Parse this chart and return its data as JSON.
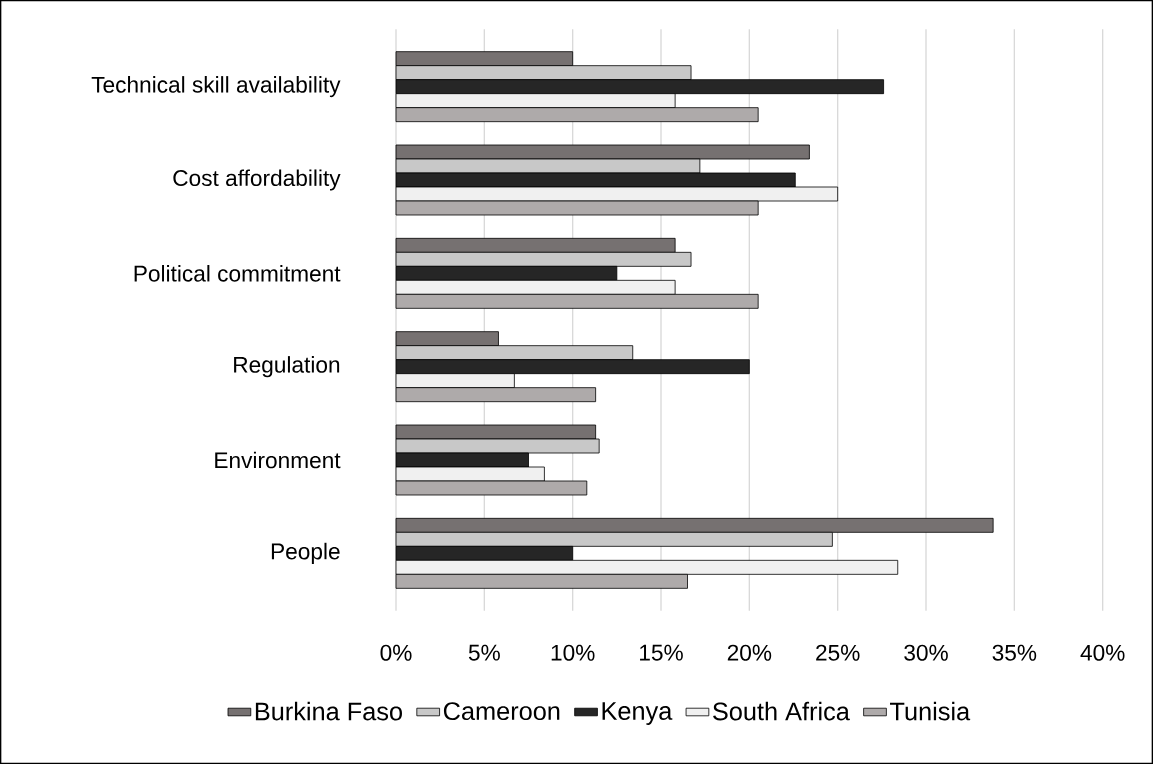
{
  "chart_data": {
    "type": "bar",
    "orientation": "horizontal",
    "categories": [
      "Technical skill availability",
      "Cost affordability",
      "Political commitment",
      "Regulation",
      "Environment",
      "People"
    ],
    "series": [
      {
        "name": "Burkina Faso",
        "color": "#767171",
        "values": [
          10.0,
          23.4,
          15.8,
          5.8,
          11.3,
          33.8
        ]
      },
      {
        "name": "Cameroon",
        "color": "#c8c8c8",
        "values": [
          16.7,
          17.2,
          16.7,
          13.4,
          11.5,
          24.7
        ]
      },
      {
        "name": "Kenya",
        "color": "#262626",
        "values": [
          27.6,
          22.6,
          12.5,
          20.0,
          7.5,
          10.0
        ]
      },
      {
        "name": "South Africa",
        "color": "#f0f0f0",
        "values": [
          15.8,
          25.0,
          15.8,
          6.7,
          8.4,
          28.4
        ]
      },
      {
        "name": "Tunisia",
        "color": "#aeaaaa",
        "values": [
          20.5,
          20.5,
          20.5,
          11.3,
          10.8,
          16.5
        ]
      }
    ],
    "xlim": [
      0,
      40
    ],
    "xticks": [
      {
        "value": 0,
        "label": "0%"
      },
      {
        "value": 5,
        "label": "5%"
      },
      {
        "value": 10,
        "label": "10%"
      },
      {
        "value": 15,
        "label": "15%"
      },
      {
        "value": 20,
        "label": "20%"
      },
      {
        "value": 25,
        "label": "25%"
      },
      {
        "value": 30,
        "label": "30%"
      },
      {
        "value": 35,
        "label": "35%"
      },
      {
        "value": 40,
        "label": "40%"
      }
    ],
    "grid": "x",
    "legend": "bottom"
  }
}
